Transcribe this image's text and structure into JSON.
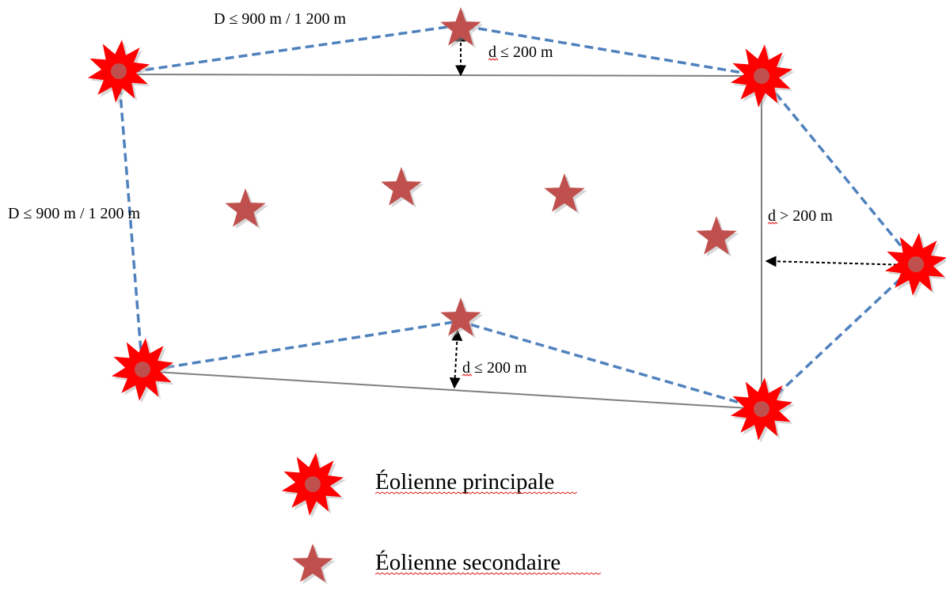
{
  "labels": {
    "top_distance": "D ≤ 900 m / 1 200 m",
    "left_distance": "D ≤ 900 m / 1 200 m",
    "top_offset": "d ≤ 200 m",
    "bottom_offset": "d ≤ 200 m",
    "right_offset": "d > 200 m"
  },
  "legend": {
    "primary": "Éolienne principale",
    "secondary": "Éolienne secondaire"
  },
  "colors": {
    "primary_star": "#ff0000",
    "primary_center": "#c0504d",
    "secondary_star": "#c0504d",
    "dashed_line": "#4f81bd",
    "solid_line": "#7f7f7f",
    "arrow": "#000000"
  }
}
